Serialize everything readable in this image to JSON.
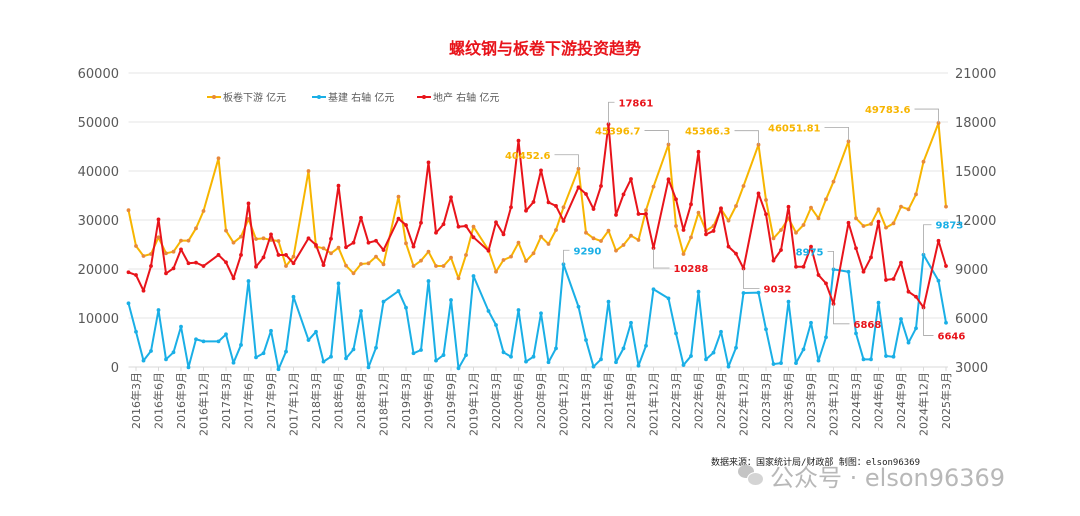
{
  "source_note": "数据来源：国家统计局/财政部  制图：elson96369",
  "watermark": "公众号 · elson96369",
  "chart_data": {
    "type": "line",
    "title": "螺纹钢与板卷下游投资趋势",
    "grid": true,
    "legend_position": "top-left",
    "y_left": {
      "range": [
        0,
        60000
      ],
      "ticks": [
        "0",
        "10000",
        "20000",
        "30000",
        "40000",
        "50000",
        "60000"
      ]
    },
    "y_right": {
      "range": [
        3000,
        21000
      ],
      "ticks": [
        "3000",
        "6000",
        "9000",
        "12000",
        "15000",
        "18000",
        "21000"
      ]
    },
    "x_tick_labels": [
      "2016年3月",
      "2016年6月",
      "2016年9月",
      "2016年12月",
      "2017年3月",
      "2017年6月",
      "2017年9月",
      "2017年12月",
      "2018年3月",
      "2018年6月",
      "2018年9月",
      "2018年12月",
      "2019年3月",
      "2019年6月",
      "2019年9月",
      "2019年12月",
      "2020年3月",
      "2020年6月",
      "2020年9月",
      "2020年12月",
      "2021年3月",
      "2021年6月",
      "2021年9月",
      "2021年12月",
      "2022年3月",
      "2022年6月",
      "2022年9月",
      "2022年12月",
      "2023年3月",
      "2023年6月",
      "2023年9月",
      "2023年12月",
      "2024年3月",
      "2024年6月",
      "2024年9月",
      "2024年12月",
      "2025年3月"
    ],
    "x": [
      "2016-02",
      "2016-03",
      "2016-04",
      "2016-05",
      "2016-06",
      "2016-07",
      "2016-08",
      "2016-09",
      "2016-10",
      "2016-11",
      "2016-12",
      "2017-02",
      "2017-03",
      "2017-04",
      "2017-05",
      "2017-06",
      "2017-07",
      "2017-08",
      "2017-09",
      "2017-10",
      "2017-11",
      "2017-12",
      "2018-02",
      "2018-03",
      "2018-04",
      "2018-05",
      "2018-06",
      "2018-07",
      "2018-08",
      "2018-09",
      "2018-10",
      "2018-11",
      "2018-12",
      "2019-02",
      "2019-03",
      "2019-04",
      "2019-05",
      "2019-06",
      "2019-07",
      "2019-08",
      "2019-09",
      "2019-10",
      "2019-11",
      "2019-12",
      "2020-02",
      "2020-03",
      "2020-04",
      "2020-05",
      "2020-06",
      "2020-07",
      "2020-08",
      "2020-09",
      "2020-10",
      "2020-11",
      "2020-12",
      "2021-02",
      "2021-03",
      "2021-04",
      "2021-05",
      "2021-06",
      "2021-07",
      "2021-08",
      "2021-09",
      "2021-10",
      "2021-11",
      "2021-12",
      "2022-02",
      "2022-03",
      "2022-04",
      "2022-05",
      "2022-06",
      "2022-07",
      "2022-08",
      "2022-09",
      "2022-10",
      "2022-11",
      "2022-12",
      "2023-02",
      "2023-03",
      "2023-04",
      "2023-05",
      "2023-06",
      "2023-07",
      "2023-08",
      "2023-09",
      "2023-10",
      "2023-11",
      "2023-12",
      "2024-02",
      "2024-03",
      "2024-04",
      "2024-05",
      "2024-06",
      "2024-07",
      "2024-08",
      "2024-09",
      "2024-10",
      "2024-11",
      "2024-12",
      "2025-02",
      "2025-03"
    ],
    "series": [
      {
        "name": "板卷下游 亿元",
        "axis": "left",
        "color": "#F7B500",
        "marker_color": "#E8893A",
        "values": [
          32000,
          24700,
          22650,
          23060,
          26470,
          23200,
          23530,
          25780,
          25780,
          28300,
          31840,
          42590,
          27820,
          25370,
          26600,
          30200,
          26120,
          26260,
          25920,
          25710,
          20610,
          22520,
          40000,
          24560,
          24220,
          23200,
          24350,
          20680,
          19120,
          21020,
          21160,
          22520,
          20950,
          34760,
          25240,
          20610,
          21700,
          23540,
          20610,
          20610,
          22310,
          18100,
          22860,
          28640,
          23880,
          19450,
          21840,
          22520,
          25370,
          21630,
          23200,
          26600,
          25100,
          27960,
          32590,
          40452.6,
          27410,
          26260,
          25710,
          27820,
          23740,
          24900,
          26800,
          25920,
          32000,
          36800,
          45396.7,
          28780,
          23060,
          26460,
          31500,
          27820,
          28780,
          32240,
          29860,
          32860,
          36940,
          45366.3,
          34080,
          26260,
          27960,
          30340,
          27410,
          28980,
          32520,
          30340,
          34220,
          37820,
          46051.81,
          30340,
          28780,
          29180,
          32180,
          28440,
          29320,
          32720,
          32180,
          35240,
          41900,
          49783.6,
          32720
        ]
      },
      {
        "name": "基建 右轴 亿元",
        "axis": "right",
        "color": "#1AAFE6",
        "marker_color": "#1AAFE6",
        "values": [
          6900,
          5160,
          3390,
          3980,
          6490,
          3470,
          3900,
          5470,
          2980,
          4700,
          4570,
          4570,
          5000,
          3260,
          4350,
          8260,
          3590,
          3840,
          5220,
          2860,
          3940,
          7300,
          4650,
          5160,
          3330,
          3630,
          8120,
          3530,
          4080,
          6430,
          2980,
          4180,
          7000,
          7650,
          6630,
          3840,
          4040,
          8260,
          3390,
          3730,
          7100,
          2920,
          3730,
          8570,
          6430,
          5570,
          3900,
          3630,
          6490,
          3330,
          3630,
          6290,
          3290,
          4140,
          9290,
          6690,
          4650,
          3020,
          3470,
          7000,
          3290,
          4140,
          5710,
          3080,
          4300,
          7760,
          7200,
          5060,
          3120,
          3670,
          7610,
          3470,
          3880,
          5160,
          3020,
          4180,
          7530,
          7550,
          5310,
          3180,
          3240,
          7000,
          3240,
          4080,
          5710,
          3390,
          4820,
          8975,
          8830,
          5060,
          3470,
          3470,
          6940,
          3670,
          3630,
          5940,
          4490,
          5370,
          9873,
          8280,
          5710
        ]
      },
      {
        "name": "地产 右轴 亿元",
        "axis": "right",
        "color": "#E8141B",
        "marker_color": "#E8141B",
        "values": [
          8800,
          8630,
          7670,
          9180,
          12040,
          8730,
          9040,
          10200,
          9350,
          9390,
          9180,
          9860,
          9410,
          8430,
          9860,
          13020,
          9140,
          9710,
          11120,
          9860,
          9860,
          9350,
          10880,
          10470,
          9240,
          10850,
          14100,
          10330,
          10610,
          12140,
          10610,
          10730,
          10160,
          12080,
          11690,
          10370,
          11830,
          15530,
          11220,
          11740,
          13390,
          11590,
          11630,
          10940,
          10120,
          11860,
          11120,
          12780,
          16860,
          12570,
          13100,
          15040,
          13080,
          12860,
          11940,
          14000,
          13590,
          12670,
          14080,
          17861,
          12310,
          13570,
          14510,
          12370,
          12370,
          10288,
          14490,
          13270,
          11390,
          12960,
          16180,
          11120,
          11330,
          12720,
          10370,
          9940,
          9032,
          13630,
          12350,
          9510,
          10160,
          12810,
          9140,
          9140,
          10370,
          8630,
          8120,
          6868,
          11830,
          10270,
          8830,
          9710,
          11900,
          8330,
          8390,
          9390,
          7610,
          7300,
          6646,
          10730,
          9180
        ]
      }
    ],
    "annotations": [
      {
        "series": 0,
        "x": "2021-02",
        "label": "40452.6"
      },
      {
        "series": 0,
        "x": "2022-02",
        "label": "45396.7"
      },
      {
        "series": 0,
        "x": "2023-02",
        "label": "45366.3"
      },
      {
        "series": 0,
        "x": "2024-02",
        "label": "46051.81"
      },
      {
        "series": 0,
        "x": "2025-02",
        "label": "49783.6"
      },
      {
        "series": 2,
        "x": "2021-06",
        "label": "17861"
      },
      {
        "series": 2,
        "x": "2021-12",
        "label": "10288"
      },
      {
        "series": 2,
        "x": "2022-12",
        "label": "9032"
      },
      {
        "series": 2,
        "x": "2023-12",
        "label": "6868"
      },
      {
        "series": 2,
        "x": "2024-12",
        "label": "6646"
      },
      {
        "series": 1,
        "x": "2020-12",
        "label": "9290"
      },
      {
        "series": 1,
        "x": "2023-12",
        "label": "8975"
      },
      {
        "series": 1,
        "x": "2024-12",
        "label": "9873"
      }
    ]
  }
}
